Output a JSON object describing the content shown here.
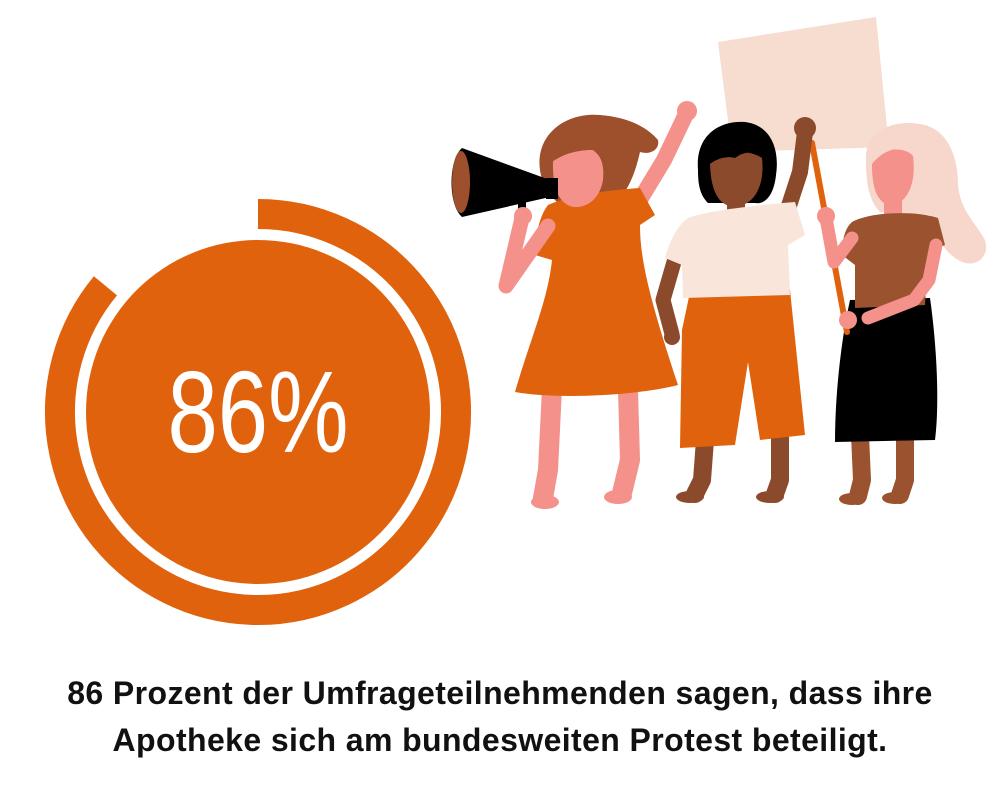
{
  "colors": {
    "background": "#FFFFFF",
    "accent_orange": "#E0620C",
    "text": "#111111",
    "value_label": "#FFFFFF",
    "skin_light": "#F3918A",
    "skin_dark": "#8C4A2C",
    "hair_brown": "#9E4F2C",
    "hair_black": "#000000",
    "hair_blonde": "#F7D7CB",
    "shirt_cream": "#FAE5DA",
    "top_brown": "#9B532F",
    "skirt_black": "#000000",
    "sign": "#F7DCD0",
    "megaphone": "#000000"
  },
  "chart_data": {
    "type": "pie",
    "value": 86,
    "max": 100,
    "value_label": "86%"
  },
  "caption": {
    "line1": "86 Prozent der Umfrageteilnehmenden sagen, dass ihre",
    "line2": "Apotheke sich am bundesweiten Protest beteiligt."
  }
}
